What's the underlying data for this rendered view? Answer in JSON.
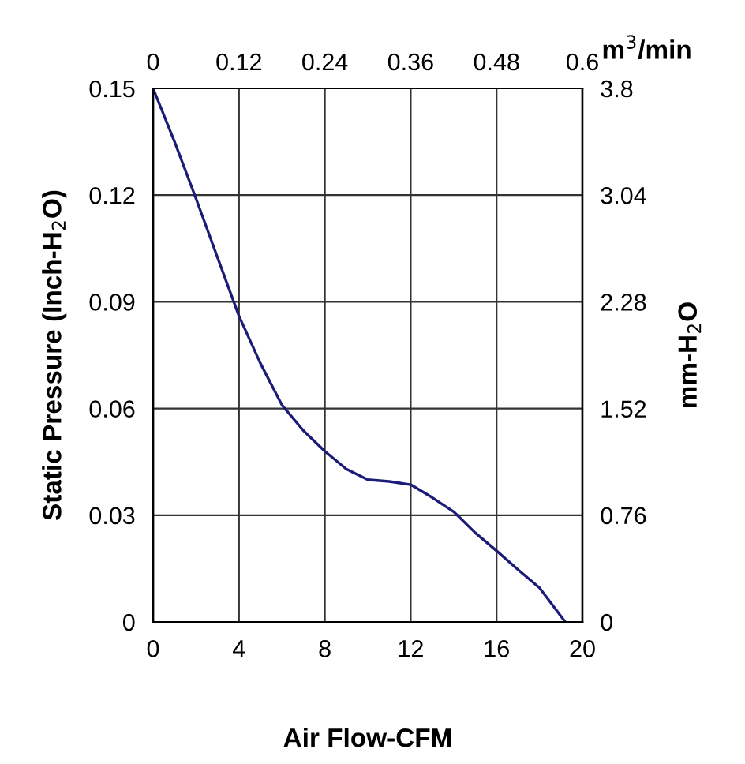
{
  "chart_data": {
    "type": "line",
    "xlabel": "Air Flow-CFM",
    "ylabel": "Static Pressure (Inch-H$_{2}$O)",
    "y2label": "mm-H$_{2}$O",
    "x2label": "m$^{3}$/min",
    "x": [
      0,
      1,
      2,
      3,
      4,
      5,
      6,
      7,
      8,
      9,
      10,
      11,
      12,
      13,
      14,
      15,
      16,
      17,
      18,
      19.2
    ],
    "series": [
      {
        "color": "#1c1c78",
        "values": [
          0.15,
          0.135,
          0.119,
          0.1025,
          0.086,
          0.0727,
          0.061,
          0.0538,
          0.048,
          0.043,
          0.04,
          0.0395,
          0.0386,
          0.035,
          0.031,
          0.0251,
          0.02,
          0.0147,
          0.0096,
          0
        ]
      }
    ],
    "xlim": [
      0,
      20
    ],
    "xticks": [
      0,
      4,
      8,
      12,
      16,
      20
    ],
    "ylim": [
      0,
      0.15
    ],
    "yticks": [
      0,
      0.03,
      0.06,
      0.09,
      0.12,
      0.15
    ],
    "x2lim": [
      0,
      0.6
    ],
    "x2ticks": [
      0,
      0.12,
      0.24,
      0.36,
      0.48,
      0.6
    ],
    "y2lim": [
      0,
      3.8
    ],
    "y2ticks": [
      0,
      0.76,
      1.52,
      2.28,
      3.04,
      3.8
    ],
    "grid": true,
    "marker": "none",
    "line_style": "solid"
  }
}
